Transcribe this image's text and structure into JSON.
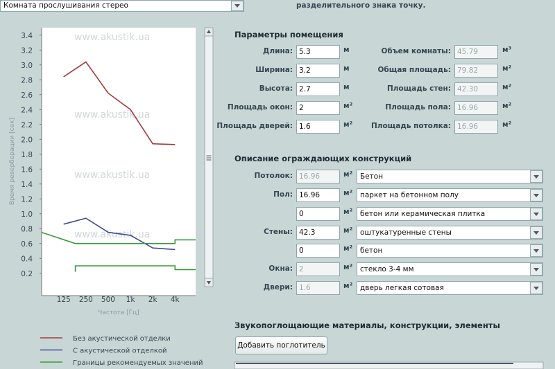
{
  "room_select": "Комната прослушивания стерео",
  "hint": "разделительного знака точку.",
  "chart_data": {
    "type": "line",
    "watermark": "www.akustik.ua",
    "xlabel": "Частота [Гц]",
    "ylabel": "Время реверберации [сек]",
    "xscale": "log",
    "xlim": [
      63,
      7600
    ],
    "ylim": [
      -0.1,
      3.5
    ],
    "xticks": [
      125,
      250,
      500,
      {
        "value": 1000,
        "label": "1k"
      },
      {
        "value": 2000,
        "label": "2k"
      },
      {
        "value": 4000,
        "label": "4k"
      }
    ],
    "yticks": [
      0.2,
      0.4,
      0.6,
      0.8,
      {
        "value": 1,
        "label": "1.0"
      },
      1.2,
      1.4,
      1.6,
      1.8,
      {
        "value": 2,
        "label": "2.0"
      },
      2.2,
      2.4,
      2.6,
      2.8,
      {
        "value": 3,
        "label": "3.0"
      },
      3.2,
      3.4
    ],
    "grid": false,
    "series": [
      {
        "name": "Без акустической отделки",
        "color": "#a33c3c",
        "x": [
          125,
          250,
          500,
          1000,
          2000,
          4000
        ],
        "values": [
          2.84,
          3.04,
          2.62,
          2.4,
          1.94,
          1.93
        ]
      },
      {
        "name": "С акустической отделкой",
        "color": "#3b4c9e",
        "x": [
          125,
          250,
          500,
          1000,
          2000,
          4000
        ],
        "values": [
          0.86,
          0.94,
          0.75,
          0.71,
          0.54,
          0.52
        ]
      },
      {
        "name": "Границы рекомендуемых значений",
        "color": "#3a9a3a",
        "x": [
          63,
          180,
          4000,
          4000,
          7600,
          null,
          180,
          180,
          4000,
          4000,
          7600
        ],
        "values": [
          0.75,
          0.6,
          0.6,
          0.65,
          0.65,
          null,
          0.22,
          0.3,
          0.3,
          0.25,
          0.25
        ]
      }
    ]
  },
  "params": {
    "title": "Параметры помещения",
    "left": [
      {
        "label": "Длина:",
        "value": "5.3",
        "unit": "м"
      },
      {
        "label": "Ширина:",
        "value": "3.2",
        "unit": "м"
      },
      {
        "label": "Высота:",
        "value": "2.7",
        "unit": "м"
      },
      {
        "label": "Площадь окон:",
        "value": "2",
        "unit": "м²"
      },
      {
        "label": "Площадь дверей:",
        "value": "1.6",
        "unit": "м²"
      }
    ],
    "right": [
      {
        "label": "Объем комнаты:",
        "value": "45.79",
        "unit": "м³"
      },
      {
        "label": "Общая площадь:",
        "value": "79.82",
        "unit": "м²"
      },
      {
        "label": "Площадь стен:",
        "value": "42.30",
        "unit": "м²"
      },
      {
        "label": "Площадь пола:",
        "value": "16.96",
        "unit": "м²"
      },
      {
        "label": "Площадь потолка:",
        "value": "16.96",
        "unit": "м²"
      }
    ]
  },
  "constructions": {
    "title": "Описание ограждающих конструкций",
    "rows": [
      {
        "label": "Потолок:",
        "value": "16.96",
        "unit": "м²",
        "material": "Бетон",
        "disabled": true
      },
      {
        "label": "Пол:",
        "value": "16.96",
        "unit": "м²",
        "material": "паркет на бетонном полу",
        "disabled": false
      },
      {
        "value": "0",
        "unit": "м²",
        "material": "бетон или керамическая плитка",
        "disabled": false
      },
      {
        "label": "Стены:",
        "value": "42.3",
        "unit": "м²",
        "material": "оштукатуренные стены",
        "disabled": false
      },
      {
        "value": "0",
        "unit": "м²",
        "material": "бетон",
        "disabled": false
      },
      {
        "label": "Окна:",
        "value": "2",
        "unit": "м²",
        "material": "стекло 3-4 мм",
        "disabled": true
      },
      {
        "label": "Двери:",
        "value": "1.6",
        "unit": "м²",
        "material": "дверь легкая сотовая",
        "disabled": true
      }
    ]
  },
  "absorbers": {
    "title": "Звукопоглощающие материалы, конструкции, элементы",
    "button": "Добавить поглотитель"
  }
}
